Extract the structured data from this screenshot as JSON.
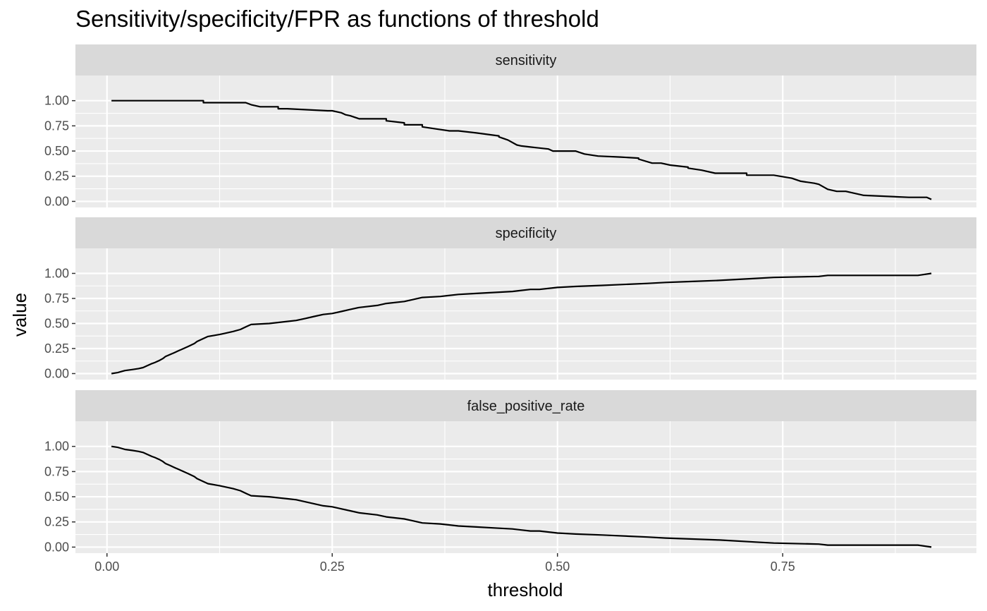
{
  "chart_data": {
    "type": "line",
    "title": "Sensitivity/specificity/FPR as functions of threshold",
    "xlabel": "threshold",
    "ylabel": "value",
    "xlim": [
      -0.035,
      0.965
    ],
    "ylim": [
      -0.06,
      1.25
    ],
    "x_ticks": [
      0.0,
      0.25,
      0.5,
      0.75
    ],
    "x_tick_labels": [
      "0.00",
      "0.25",
      "0.50",
      "0.75"
    ],
    "y_ticks": [
      0.0,
      0.25,
      0.5,
      0.75,
      1.0
    ],
    "y_tick_labels": [
      "0.00",
      "0.25",
      "0.50",
      "0.75",
      "1.00"
    ],
    "grid": true,
    "facets": [
      {
        "name": "sensitivity",
        "x": [
          0.005,
          0.107,
          0.107,
          0.154,
          0.16,
          0.17,
          0.19,
          0.19,
          0.2,
          0.2,
          0.245,
          0.25,
          0.26,
          0.265,
          0.27,
          0.28,
          0.29,
          0.29,
          0.31,
          0.31,
          0.33,
          0.33,
          0.35,
          0.35,
          0.365,
          0.365,
          0.38,
          0.39,
          0.41,
          0.41,
          0.435,
          0.435,
          0.445,
          0.455,
          0.46,
          0.47,
          0.49,
          0.495,
          0.52,
          0.53,
          0.545,
          0.57,
          0.59,
          0.59,
          0.605,
          0.615,
          0.625,
          0.645,
          0.645,
          0.66,
          0.675,
          0.71,
          0.71,
          0.74,
          0.76,
          0.77,
          0.785,
          0.79,
          0.8,
          0.81,
          0.82,
          0.84,
          0.89,
          0.91,
          0.915
        ],
        "y": [
          1.0,
          1.0,
          0.98,
          0.98,
          0.96,
          0.94,
          0.94,
          0.92,
          0.92,
          0.92,
          0.9,
          0.9,
          0.88,
          0.86,
          0.85,
          0.82,
          0.82,
          0.82,
          0.82,
          0.8,
          0.78,
          0.76,
          0.76,
          0.74,
          0.72,
          0.72,
          0.7,
          0.7,
          0.68,
          0.68,
          0.65,
          0.64,
          0.61,
          0.56,
          0.55,
          0.54,
          0.52,
          0.5,
          0.5,
          0.47,
          0.45,
          0.44,
          0.43,
          0.42,
          0.38,
          0.38,
          0.36,
          0.34,
          0.33,
          0.31,
          0.28,
          0.28,
          0.26,
          0.26,
          0.23,
          0.2,
          0.18,
          0.17,
          0.12,
          0.1,
          0.1,
          0.06,
          0.04,
          0.04,
          0.02
        ]
      },
      {
        "name": "specificity",
        "x": [
          0.005,
          0.012,
          0.016,
          0.02,
          0.028,
          0.035,
          0.04,
          0.045,
          0.05,
          0.053,
          0.058,
          0.062,
          0.065,
          0.07,
          0.075,
          0.08,
          0.085,
          0.09,
          0.097,
          0.1,
          0.112,
          0.125,
          0.13,
          0.14,
          0.148,
          0.155,
          0.16,
          0.18,
          0.2,
          0.21,
          0.22,
          0.23,
          0.24,
          0.25,
          0.26,
          0.27,
          0.28,
          0.3,
          0.31,
          0.33,
          0.34,
          0.35,
          0.37,
          0.39,
          0.41,
          0.43,
          0.45,
          0.46,
          0.47,
          0.48,
          0.5,
          0.52,
          0.55,
          0.6,
          0.62,
          0.65,
          0.68,
          0.72,
          0.74,
          0.79,
          0.8,
          0.9,
          0.915
        ],
        "y": [
          0.0,
          0.01,
          0.02,
          0.03,
          0.04,
          0.05,
          0.06,
          0.08,
          0.1,
          0.11,
          0.13,
          0.15,
          0.17,
          0.19,
          0.21,
          0.23,
          0.25,
          0.27,
          0.3,
          0.32,
          0.37,
          0.39,
          0.4,
          0.42,
          0.44,
          0.47,
          0.49,
          0.5,
          0.52,
          0.53,
          0.55,
          0.57,
          0.59,
          0.6,
          0.62,
          0.64,
          0.66,
          0.68,
          0.7,
          0.72,
          0.74,
          0.76,
          0.77,
          0.79,
          0.8,
          0.81,
          0.82,
          0.83,
          0.84,
          0.84,
          0.86,
          0.87,
          0.88,
          0.9,
          0.91,
          0.92,
          0.93,
          0.95,
          0.96,
          0.97,
          0.98,
          0.98,
          1.0
        ]
      },
      {
        "name": "false_positive_rate",
        "x": [
          0.005,
          0.012,
          0.016,
          0.02,
          0.028,
          0.035,
          0.04,
          0.045,
          0.05,
          0.053,
          0.058,
          0.062,
          0.065,
          0.07,
          0.075,
          0.08,
          0.085,
          0.09,
          0.097,
          0.1,
          0.112,
          0.125,
          0.13,
          0.14,
          0.148,
          0.155,
          0.16,
          0.18,
          0.2,
          0.21,
          0.22,
          0.23,
          0.24,
          0.25,
          0.26,
          0.27,
          0.28,
          0.3,
          0.31,
          0.33,
          0.34,
          0.35,
          0.37,
          0.39,
          0.41,
          0.43,
          0.45,
          0.46,
          0.47,
          0.48,
          0.5,
          0.52,
          0.55,
          0.6,
          0.62,
          0.65,
          0.68,
          0.72,
          0.74,
          0.79,
          0.8,
          0.9,
          0.915
        ],
        "y": [
          1.0,
          0.99,
          0.98,
          0.97,
          0.96,
          0.95,
          0.94,
          0.92,
          0.9,
          0.89,
          0.87,
          0.85,
          0.83,
          0.81,
          0.79,
          0.77,
          0.75,
          0.73,
          0.7,
          0.68,
          0.63,
          0.61,
          0.6,
          0.58,
          0.56,
          0.53,
          0.51,
          0.5,
          0.48,
          0.47,
          0.45,
          0.43,
          0.41,
          0.4,
          0.38,
          0.36,
          0.34,
          0.32,
          0.3,
          0.28,
          0.26,
          0.24,
          0.23,
          0.21,
          0.2,
          0.19,
          0.18,
          0.17,
          0.16,
          0.16,
          0.14,
          0.13,
          0.12,
          0.1,
          0.09,
          0.08,
          0.07,
          0.05,
          0.04,
          0.03,
          0.02,
          0.02,
          0.0
        ]
      }
    ]
  },
  "colors": {
    "panel_background": "#ebebeb",
    "strip_background": "#d9d9d9",
    "grid_major": "#ffffff",
    "line": "#000000"
  }
}
